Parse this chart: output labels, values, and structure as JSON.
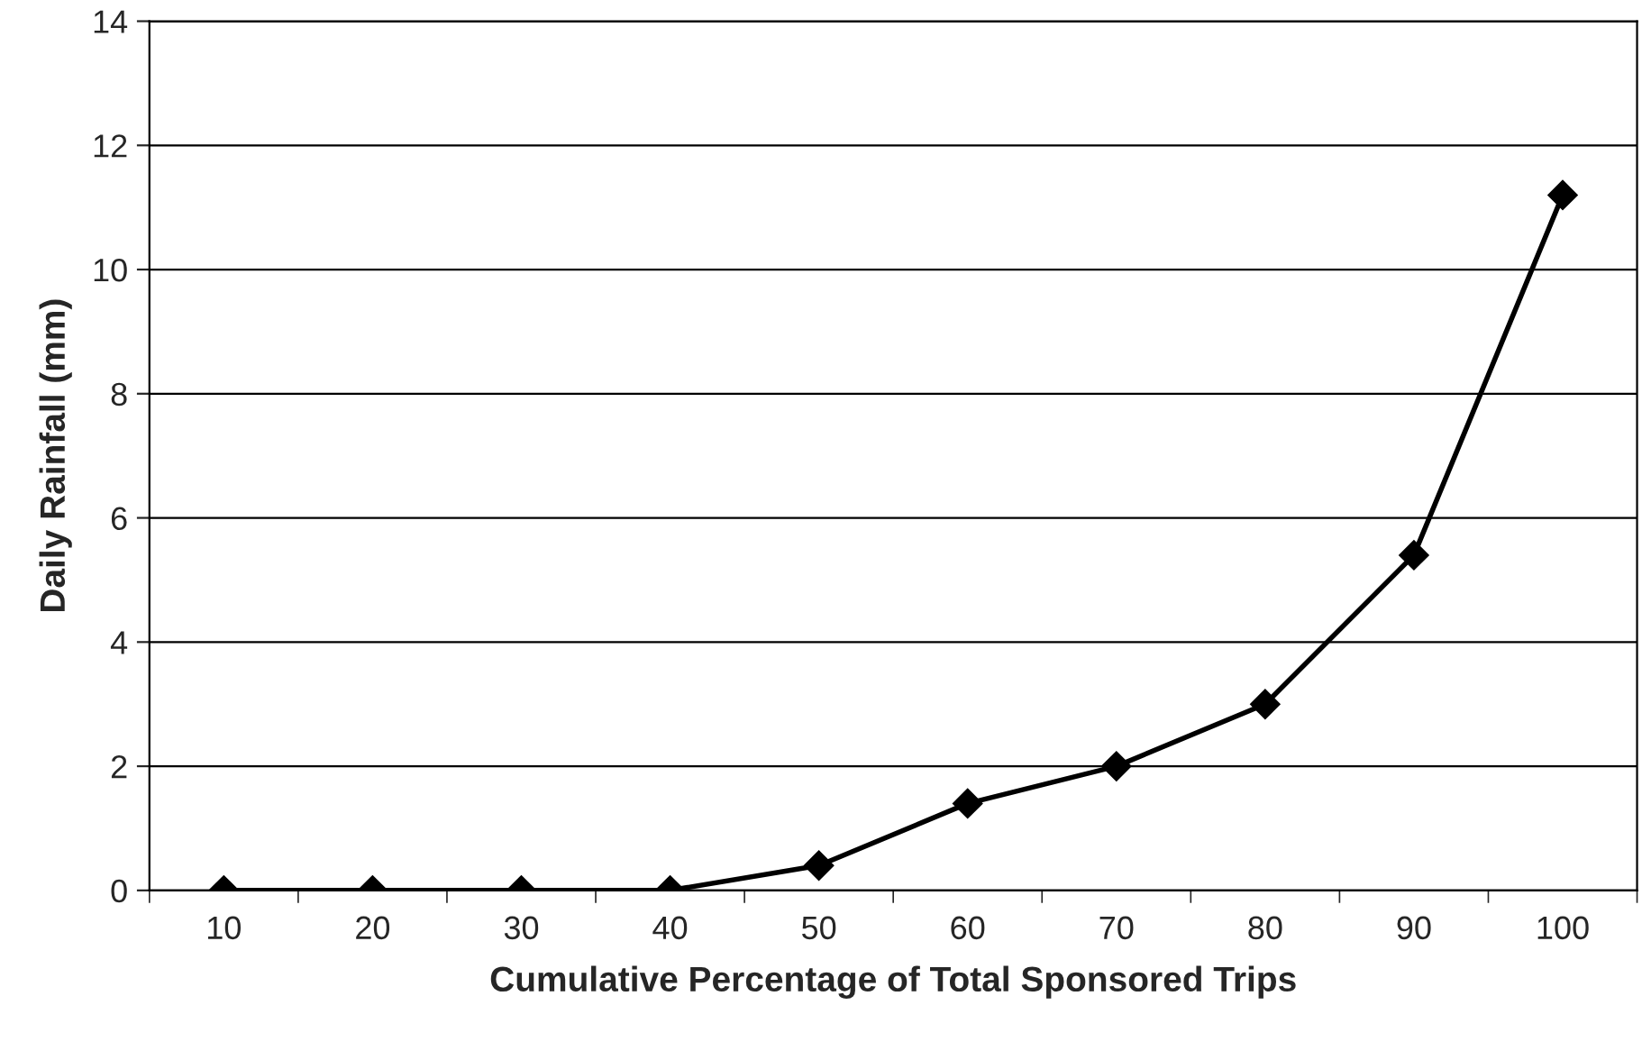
{
  "chart_data": {
    "type": "line",
    "xlabel": "Cumulative Percentage of Total Sponsored Trips",
    "ylabel": "Daily Rainfall (mm)",
    "categories": [
      "10",
      "20",
      "30",
      "40",
      "50",
      "60",
      "70",
      "80",
      "90",
      "100"
    ],
    "series": [
      {
        "color": "#000000",
        "values": [
          0,
          0,
          0,
          0,
          0.4,
          1.4,
          2.0,
          3.0,
          5.4,
          11.2
        ]
      }
    ],
    "ylim": [
      0,
      14
    ],
    "yticks": [
      0,
      2,
      4,
      6,
      8,
      10,
      12,
      14
    ],
    "grid": "y",
    "marker": "diamond",
    "line_style": "solid",
    "legend": false
  }
}
